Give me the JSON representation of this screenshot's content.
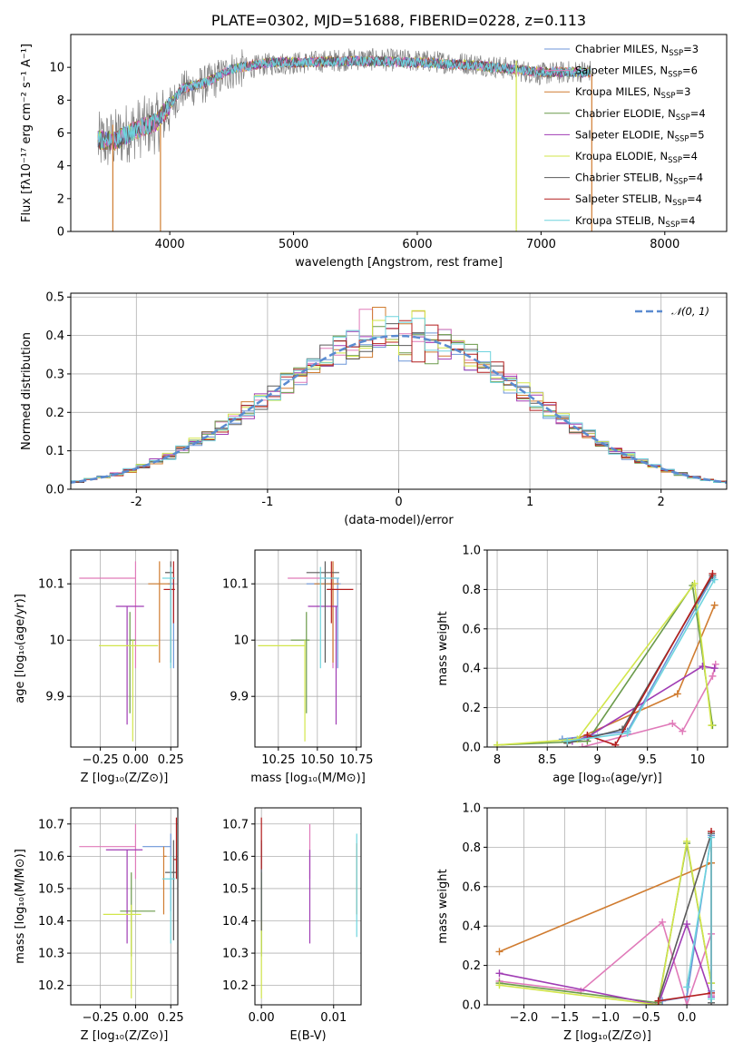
{
  "colors": {
    "Chabrier MILES": "#6c96d8",
    "Salpeter MILES": "#e07ab9",
    "Kroupa MILES": "#d07c30",
    "Chabrier ELODIE": "#6a9a4a",
    "Salpeter ELODIE": "#a03cb4",
    "Kroupa ELODIE": "#d2e64a",
    "Chabrier STELIB": "#5a5a5a",
    "Salpeter STELIB": "#b41e1e",
    "Kroupa STELIB": "#6ed4de"
  },
  "chart_data": [
    {
      "id": "spectrum",
      "type": "line",
      "title": "PLATE=0302, MJD=51688, FIBERID=0228, z=0.113",
      "xlabel": "wavelength [Angstrom, rest frame]",
      "ylabel": "Flux [fλ10⁻¹⁷ erg cm⁻² s⁻¹ A⁻¹]",
      "xlim": [
        3200,
        8500
      ],
      "ylim": [
        0,
        12
      ],
      "xticks": [
        4000,
        5000,
        6000,
        7000,
        8000
      ],
      "yticks": [
        0,
        2,
        4,
        6,
        8,
        10
      ],
      "legend_position": "top-right",
      "legend": [
        {
          "text": "Chabrier MILES, N",
          "sub": "SSP",
          "rest": "=3",
          "color": "Chabrier MILES"
        },
        {
          "text": "Salpeter MILES, N",
          "sub": "SSP",
          "rest": "=6",
          "color": "Salpeter MILES"
        },
        {
          "text": "Kroupa MILES, N",
          "sub": "SSP",
          "rest": "=3",
          "color": "Kroupa MILES"
        },
        {
          "text": "Chabrier ELODIE, N",
          "sub": "SSP",
          "rest": "=4",
          "color": "Chabrier ELODIE"
        },
        {
          "text": "Salpeter ELODIE, N",
          "sub": "SSP",
          "rest": "=5",
          "color": "Salpeter ELODIE"
        },
        {
          "text": "Kroupa ELODIE, N",
          "sub": "SSP",
          "rest": "=4",
          "color": "Kroupa ELODIE"
        },
        {
          "text": "Chabrier STELIB, N",
          "sub": "SSP",
          "rest": "=4",
          "color": "Chabrier STELIB"
        },
        {
          "text": "Salpeter STELIB, N",
          "sub": "SSP",
          "rest": "=4",
          "color": "Salpeter STELIB"
        },
        {
          "text": "Kroupa STELIB, N",
          "sub": "SSP",
          "rest": "=4",
          "color": "Kroupa STELIB"
        }
      ],
      "data_profile": {
        "x": [
          3420,
          3550,
          3700,
          3900,
          4100,
          4300,
          4500,
          4800,
          5100,
          5500,
          6000,
          6500,
          7000,
          7400
        ],
        "y": [
          5.4,
          5.6,
          6.2,
          6.6,
          8.6,
          9.0,
          9.8,
          10.2,
          10.3,
          10.5,
          10.4,
          10.2,
          9.6,
          9.8
        ]
      },
      "model_profile": {
        "x": [
          3420,
          3550,
          3700,
          3900,
          4100,
          4300,
          4500,
          4800,
          5100,
          5500,
          6000,
          6500,
          7000,
          7400
        ],
        "y": [
          5.6,
          5.5,
          6.1,
          6.7,
          8.7,
          9.1,
          9.9,
          10.3,
          10.3,
          10.4,
          10.3,
          10.1,
          9.7,
          9.7
        ]
      },
      "vertical_drops": [
        {
          "x": 3540,
          "color": "Kroupa MILES"
        },
        {
          "x": 3925,
          "color": "Kroupa MILES"
        },
        {
          "x": 6800,
          "color": "Kroupa ELODIE"
        },
        {
          "x": 7410,
          "color": "Kroupa MILES"
        }
      ]
    },
    {
      "id": "residuals",
      "type": "line",
      "xlabel": "(data-model)/error",
      "ylabel": "Normed distribution",
      "xlim": [
        -2.5,
        2.5
      ],
      "ylim": [
        0,
        0.51
      ],
      "xticks": [
        -2,
        -1,
        0,
        1,
        2
      ],
      "yticks": [
        0.0,
        0.1,
        0.2,
        0.3,
        0.4,
        0.5
      ],
      "legend": [
        {
          "text": "𝒩(0, 1)"
        }
      ],
      "legend_position": "top-right",
      "gaussian": {
        "mu": 0,
        "sigma": 1
      }
    },
    {
      "id": "age_vs_Z",
      "type": "scatter",
      "xlabel": "Z [log₁₀(Z/Z⊙)]",
      "ylabel": "age  [log₁₀(age/yr)]",
      "xlim": [
        -0.46,
        0.3
      ],
      "ylim": [
        9.81,
        10.16
      ],
      "xticks": [
        -0.25,
        0.0,
        0.25
      ],
      "xticklabels": [
        "−0.25",
        "0.00",
        "0.25"
      ],
      "yticks": [
        9.9,
        10.0,
        10.1
      ],
      "points": [
        {
          "model": "Chabrier MILES",
          "x": 0.27,
          "y": 10.1,
          "xerr": [
            0.04,
            0.0
          ],
          "yerr": [
            0.15,
            0.01
          ]
        },
        {
          "model": "Salpeter MILES",
          "x": 0.0,
          "y": 10.11,
          "xerr": [
            0.4,
            0.0
          ],
          "yerr": [
            0.16,
            0.03
          ]
        },
        {
          "model": "Kroupa MILES",
          "x": 0.17,
          "y": 10.1,
          "xerr": [
            0.08,
            0.08
          ],
          "yerr": [
            0.14,
            0.04
          ]
        },
        {
          "model": "Chabrier ELODIE",
          "x": -0.04,
          "y": 10.0,
          "xerr": [
            0.0,
            0.04
          ],
          "yerr": [
            0.13,
            0.05
          ]
        },
        {
          "model": "Salpeter ELODIE",
          "x": -0.06,
          "y": 10.06,
          "xerr": [
            0.08,
            0.12
          ],
          "yerr": [
            0.21,
            0.0
          ]
        },
        {
          "model": "Kroupa ELODIE",
          "x": -0.02,
          "y": 9.99,
          "xerr": [
            0.24,
            0.18
          ],
          "yerr": [
            0.17,
            0.01
          ]
        },
        {
          "model": "Chabrier STELIB",
          "x": 0.25,
          "y": 10.12,
          "xerr": [
            0.04,
            0.02
          ],
          "yerr": [
            0.16,
            0.02
          ]
        },
        {
          "model": "Salpeter STELIB",
          "x": 0.27,
          "y": 10.09,
          "xerr": [
            0.07,
            0.01
          ],
          "yerr": [
            0.06,
            0.05
          ]
        },
        {
          "model": "Kroupa STELIB",
          "x": 0.25,
          "y": 10.11,
          "xerr": [
            0.06,
            0.03
          ],
          "yerr": [
            0.16,
            0.02
          ]
        }
      ]
    },
    {
      "id": "age_vs_mass",
      "type": "scatter",
      "xlabel": "mass [log₁₀(M/M⊙)]",
      "ylabel": "",
      "xlim": [
        10.1,
        10.78
      ],
      "ylim": [
        9.81,
        10.16
      ],
      "xticks": [
        10.25,
        10.5,
        10.75
      ],
      "xticklabels": [
        "10.25",
        "10.50",
        "10.75"
      ],
      "yticks": [
        9.9,
        10.0,
        10.1
      ],
      "points": [
        {
          "model": "Chabrier MILES",
          "x": 10.63,
          "y": 10.1,
          "xerr": [
            0.2,
            0.02
          ],
          "yerr": [
            0.15,
            0.01
          ]
        },
        {
          "model": "Salpeter MILES",
          "x": 10.6,
          "y": 10.11,
          "xerr": [
            0.29,
            0.04
          ],
          "yerr": [
            0.16,
            0.03
          ]
        },
        {
          "model": "Kroupa MILES",
          "x": 10.6,
          "y": 10.1,
          "xerr": [
            0.12,
            0.04
          ],
          "yerr": [
            0.14,
            0.04
          ]
        },
        {
          "model": "Chabrier ELODIE",
          "x": 10.43,
          "y": 10.0,
          "xerr": [
            0.1,
            0.02
          ],
          "yerr": [
            0.13,
            0.05
          ]
        },
        {
          "model": "Salpeter ELODIE",
          "x": 10.62,
          "y": 10.06,
          "xerr": [
            0.18,
            0.01
          ],
          "yerr": [
            0.21,
            0.0
          ]
        },
        {
          "model": "Kroupa ELODIE",
          "x": 10.42,
          "y": 9.99,
          "xerr": [
            0.3,
            0.0
          ],
          "yerr": [
            0.17,
            0.01
          ]
        },
        {
          "model": "Chabrier STELIB",
          "x": 10.55,
          "y": 10.12,
          "xerr": [
            0.12,
            0.09
          ],
          "yerr": [
            0.16,
            0.02
          ]
        },
        {
          "model": "Salpeter STELIB",
          "x": 10.59,
          "y": 10.09,
          "xerr": [
            0.03,
            0.14
          ],
          "yerr": [
            0.06,
            0.05
          ]
        },
        {
          "model": "Kroupa STELIB",
          "x": 10.52,
          "y": 10.11,
          "xerr": [
            0.0,
            0.12
          ],
          "yerr": [
            0.16,
            0.02
          ]
        }
      ]
    },
    {
      "id": "mass_weight_vs_age",
      "type": "line",
      "xlabel": "age  [log₁₀(age/yr)]",
      "ylabel": "mass weight",
      "xlim": [
        7.9,
        10.3
      ],
      "ylim": [
        0,
        1
      ],
      "xticks": [
        8.0,
        8.5,
        9.0,
        9.5,
        10.0
      ],
      "yticks": [
        0.0,
        0.2,
        0.4,
        0.6,
        0.8,
        1.0
      ],
      "series": [
        {
          "model": "Chabrier MILES",
          "x": [
            8.65,
            9.3,
            10.15
          ],
          "y": [
            0.04,
            0.08,
            0.86
          ]
        },
        {
          "model": "Salpeter MILES",
          "x": [
            8.85,
            9.75,
            9.85,
            10.15,
            10.18
          ],
          "y": [
            0.0,
            0.12,
            0.08,
            0.36,
            0.42
          ]
        },
        {
          "model": "Kroupa MILES",
          "x": [
            8.7,
            9.8,
            10.17
          ],
          "y": [
            0.02,
            0.27,
            0.72
          ]
        },
        {
          "model": "Chabrier ELODIE",
          "x": [
            8.0,
            8.9,
            9.95,
            10.15
          ],
          "y": [
            0.01,
            0.03,
            0.82,
            0.11
          ]
        },
        {
          "model": "Salpeter ELODIE",
          "x": [
            8.75,
            8.9,
            10.05,
            10.17
          ],
          "y": [
            0.03,
            0.05,
            0.41,
            0.4
          ]
        },
        {
          "model": "Kroupa ELODIE",
          "x": [
            8.0,
            8.8,
            9.97,
            10.14
          ],
          "y": [
            0.01,
            0.04,
            0.83,
            0.11
          ]
        },
        {
          "model": "Chabrier STELIB",
          "x": [
            8.7,
            9.25,
            10.15
          ],
          "y": [
            0.02,
            0.09,
            0.87
          ]
        },
        {
          "model": "Salpeter STELIB",
          "x": [
            8.9,
            9.18,
            10.15
          ],
          "y": [
            0.06,
            0.01,
            0.88
          ]
        },
        {
          "model": "Kroupa STELIB",
          "x": [
            8.7,
            9.3,
            10.17
          ],
          "y": [
            0.03,
            0.07,
            0.85
          ]
        }
      ]
    },
    {
      "id": "mass_vs_Z",
      "type": "scatter",
      "xlabel": "Z [log₁₀(Z/Z⊙)]",
      "ylabel": "mass [log₁₀(M/M⊙)]",
      "xlim": [
        -0.46,
        0.3
      ],
      "ylim": [
        10.14,
        10.75
      ],
      "xticks": [
        -0.25,
        0.0,
        0.25
      ],
      "xticklabels": [
        "−0.25",
        "0.00",
        "0.25"
      ],
      "yticks": [
        10.2,
        10.3,
        10.4,
        10.5,
        10.6,
        10.7
      ],
      "points": [
        {
          "model": "Chabrier MILES",
          "x": 0.25,
          "y": 10.63,
          "xerr": [
            0.2,
            0.0
          ],
          "yerr": [
            0.2,
            0.04
          ]
        },
        {
          "model": "Salpeter MILES",
          "x": 0.0,
          "y": 10.63,
          "xerr": [
            0.4,
            0.0
          ],
          "yerr": [
            0.1,
            0.07
          ]
        },
        {
          "model": "Kroupa MILES",
          "x": 0.2,
          "y": 10.6,
          "xerr": [
            0.0,
            0.02
          ],
          "yerr": [
            0.18,
            0.03
          ]
        },
        {
          "model": "Chabrier ELODIE",
          "x": -0.03,
          "y": 10.43,
          "xerr": [
            0.08,
            0.17
          ],
          "yerr": [
            0.14,
            0.12
          ]
        },
        {
          "model": "Salpeter ELODIE",
          "x": -0.06,
          "y": 10.62,
          "xerr": [
            0.15,
            0.11
          ],
          "yerr": [
            0.29,
            0.0
          ]
        },
        {
          "model": "Kroupa ELODIE",
          "x": -0.03,
          "y": 10.42,
          "xerr": [
            0.2,
            0.07
          ],
          "yerr": [
            0.26,
            0.03
          ]
        },
        {
          "model": "Chabrier STELIB",
          "x": 0.27,
          "y": 10.55,
          "xerr": [
            0.06,
            0.02
          ],
          "yerr": [
            0.21,
            0.1
          ]
        },
        {
          "model": "Salpeter STELIB",
          "x": 0.29,
          "y": 10.59,
          "xerr": [
            0.02,
            0.0
          ],
          "yerr": [
            0.06,
            0.13
          ]
        },
        {
          "model": "Kroupa STELIB",
          "x": 0.25,
          "y": 10.53,
          "xerr": [
            0.06,
            0.03
          ],
          "yerr": [
            0.2,
            0.07
          ]
        }
      ]
    },
    {
      "id": "mass_vs_EBV",
      "type": "scatter",
      "xlabel": "E(B-V)",
      "ylabel": "",
      "xlim": [
        -0.0009,
        0.0138
      ],
      "ylim": [
        10.14,
        10.75
      ],
      "xticks": [
        0.0,
        0.01
      ],
      "xticklabels": [
        "0.00",
        "0.01"
      ],
      "yticks": [
        10.2,
        10.3,
        10.4,
        10.5,
        10.6,
        10.7
      ],
      "points": [
        {
          "model": "Chabrier MILES",
          "x": 0.0,
          "y": 10.5,
          "yerr": [
            0.2,
            0.14
          ]
        },
        {
          "model": "Salpeter MILES",
          "x": 0.0067,
          "y": 10.55,
          "yerr": [
            0.02,
            0.15
          ]
        },
        {
          "model": "Kroupa MILES",
          "x": 0.0132,
          "y": 10.52,
          "yerr": [
            0.1,
            0.12
          ]
        },
        {
          "model": "Chabrier ELODIE",
          "x": 0.0,
          "y": 10.43,
          "yerr": [
            0.14,
            0.12
          ]
        },
        {
          "model": "Salpeter ELODIE",
          "x": 0.0067,
          "y": 10.45,
          "yerr": [
            0.12,
            0.17
          ]
        },
        {
          "model": "Kroupa ELODIE",
          "x": 0.0,
          "y": 10.3,
          "yerr": [
            0.14,
            0.1
          ]
        },
        {
          "model": "Chabrier STELIB",
          "x": 0.0,
          "y": 10.45,
          "yerr": [
            0.08,
            0.2
          ]
        },
        {
          "model": "Salpeter STELIB",
          "x": 0.0,
          "y": 10.62,
          "yerr": [
            0.06,
            0.1
          ]
        },
        {
          "model": "Kroupa STELIB",
          "x": 0.0132,
          "y": 10.55,
          "yerr": [
            0.2,
            0.12
          ]
        }
      ]
    },
    {
      "id": "mass_weight_vs_Z",
      "type": "line",
      "xlabel": "Z [log₁₀(Z/Z⊙)]",
      "ylabel": "mass weight",
      "xlim": [
        -2.45,
        0.5
      ],
      "ylim": [
        0,
        1
      ],
      "xticks": [
        -2.0,
        -1.5,
        -1.0,
        -0.5,
        0.0
      ],
      "xticklabels": [
        "−2.0",
        "−1.5",
        "−1.0",
        "−0.5",
        "0.0"
      ],
      "yticks": [
        0.0,
        0.2,
        0.4,
        0.6,
        0.8,
        1.0
      ],
      "series": [
        {
          "model": "Chabrier MILES",
          "x": [
            -0.3,
            0.0,
            0.3,
            0.3
          ],
          "y": [
            0.02,
            0.04,
            0.86,
            0.07
          ]
        },
        {
          "model": "Salpeter MILES",
          "x": [
            -2.3,
            -1.3,
            -0.3,
            0.0,
            0.3,
            0.3
          ],
          "y": [
            0.12,
            0.07,
            0.42,
            0.0,
            0.36,
            0.05
          ]
        },
        {
          "model": "Kroupa MILES",
          "x": [
            -2.3,
            0.3
          ],
          "y": [
            0.27,
            0.72
          ]
        },
        {
          "model": "Chabrier ELODIE",
          "x": [
            -2.3,
            -0.35,
            0.0,
            0.3
          ],
          "y": [
            0.11,
            0.01,
            0.82,
            0.11
          ]
        },
        {
          "model": "Salpeter ELODIE",
          "x": [
            -2.3,
            -0.35,
            0.0,
            0.3
          ],
          "y": [
            0.16,
            0.0,
            0.41,
            0.04
          ]
        },
        {
          "model": "Kroupa ELODIE",
          "x": [
            -2.3,
            -0.35,
            0.0,
            0.3
          ],
          "y": [
            0.1,
            0.0,
            0.83,
            0.11
          ]
        },
        {
          "model": "Chabrier STELIB",
          "x": [
            -0.35,
            0.3,
            0.3
          ],
          "y": [
            0.02,
            0.87,
            0.01
          ]
        },
        {
          "model": "Salpeter STELIB",
          "x": [
            -0.35,
            0.3,
            0.3
          ],
          "y": [
            0.02,
            0.06,
            0.88
          ]
        },
        {
          "model": "Kroupa STELIB",
          "x": [
            0.0,
            0.3,
            0.3
          ],
          "y": [
            0.09,
            0.85,
            0.03
          ]
        }
      ]
    }
  ]
}
